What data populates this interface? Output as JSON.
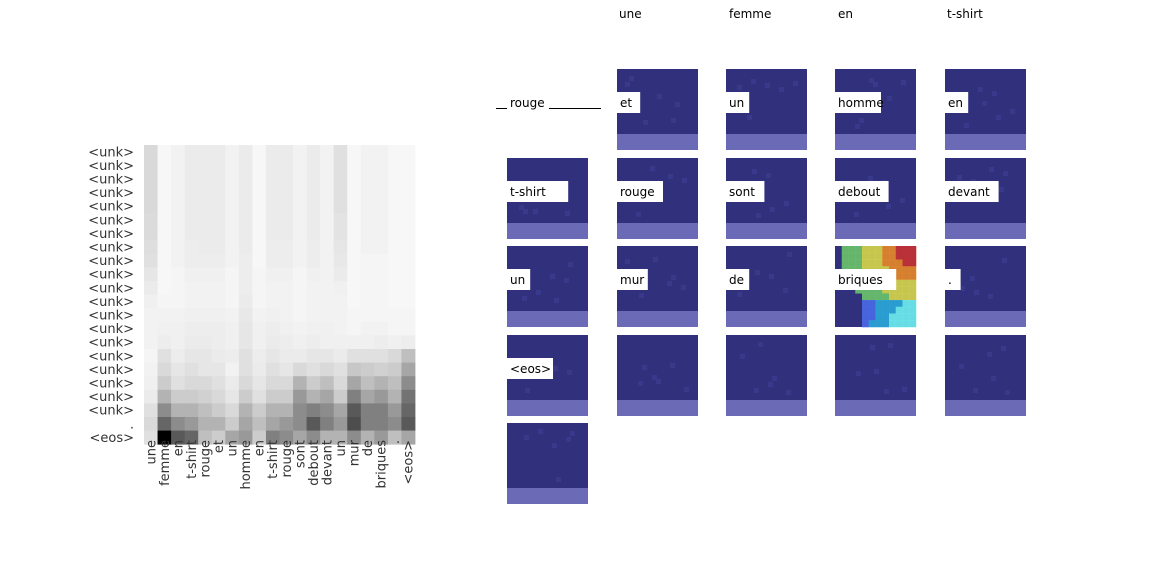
{
  "chart_data": [
    {
      "type": "heatmap",
      "x_tokens": [
        "une",
        "femme",
        "en",
        "t-shirt",
        "rouge",
        "et",
        "un",
        "homme",
        "en",
        "t-shirt",
        "rouge",
        "sont",
        "debout",
        "devant",
        "un",
        "mur",
        "de",
        "briques",
        ".",
        "<eos>"
      ],
      "y_tokens": [
        "<unk>",
        "<unk>",
        "<unk>",
        "<unk>",
        "<unk>",
        "<unk>",
        "<unk>",
        "<unk>",
        "<unk>",
        "<unk>",
        "<unk>",
        "<unk>",
        "<unk>",
        "<unk>",
        "<unk>",
        "<unk>",
        "<unk>",
        "<unk>",
        "<unk>",
        "<unk>",
        ".",
        "<eos>"
      ],
      "colormap": "Greys",
      "values": [
        [
          0.15,
          0.03,
          0.05,
          0.08,
          0.08,
          0.08,
          0.05,
          0.08,
          0.03,
          0.08,
          0.08,
          0.05,
          0.08,
          0.05,
          0.12,
          0.03,
          0.05,
          0.05,
          0.03,
          0.03
        ],
        [
          0.15,
          0.03,
          0.05,
          0.08,
          0.08,
          0.08,
          0.05,
          0.08,
          0.03,
          0.08,
          0.08,
          0.05,
          0.08,
          0.05,
          0.12,
          0.03,
          0.05,
          0.05,
          0.03,
          0.03
        ],
        [
          0.15,
          0.03,
          0.05,
          0.08,
          0.08,
          0.08,
          0.05,
          0.08,
          0.03,
          0.08,
          0.08,
          0.05,
          0.08,
          0.05,
          0.12,
          0.03,
          0.05,
          0.05,
          0.03,
          0.03
        ],
        [
          0.15,
          0.03,
          0.05,
          0.08,
          0.08,
          0.08,
          0.05,
          0.08,
          0.03,
          0.08,
          0.08,
          0.05,
          0.08,
          0.05,
          0.12,
          0.03,
          0.05,
          0.05,
          0.03,
          0.03
        ],
        [
          0.15,
          0.03,
          0.05,
          0.08,
          0.08,
          0.08,
          0.05,
          0.08,
          0.03,
          0.08,
          0.08,
          0.05,
          0.08,
          0.05,
          0.12,
          0.03,
          0.05,
          0.05,
          0.03,
          0.03
        ],
        [
          0.14,
          0.03,
          0.05,
          0.08,
          0.08,
          0.08,
          0.05,
          0.08,
          0.03,
          0.08,
          0.08,
          0.05,
          0.08,
          0.05,
          0.11,
          0.03,
          0.05,
          0.05,
          0.03,
          0.03
        ],
        [
          0.14,
          0.03,
          0.05,
          0.08,
          0.08,
          0.08,
          0.05,
          0.08,
          0.03,
          0.08,
          0.08,
          0.05,
          0.08,
          0.05,
          0.11,
          0.03,
          0.05,
          0.05,
          0.03,
          0.03
        ],
        [
          0.13,
          0.03,
          0.05,
          0.07,
          0.08,
          0.08,
          0.05,
          0.08,
          0.03,
          0.07,
          0.07,
          0.05,
          0.07,
          0.05,
          0.1,
          0.03,
          0.05,
          0.05,
          0.03,
          0.03
        ],
        [
          0.12,
          0.03,
          0.05,
          0.07,
          0.07,
          0.07,
          0.05,
          0.07,
          0.03,
          0.07,
          0.07,
          0.05,
          0.07,
          0.05,
          0.09,
          0.03,
          0.04,
          0.04,
          0.03,
          0.03
        ],
        [
          0.1,
          0.03,
          0.04,
          0.06,
          0.06,
          0.06,
          0.04,
          0.07,
          0.04,
          0.06,
          0.06,
          0.04,
          0.06,
          0.05,
          0.08,
          0.03,
          0.04,
          0.04,
          0.03,
          0.03
        ],
        [
          0.08,
          0.03,
          0.04,
          0.05,
          0.05,
          0.05,
          0.04,
          0.07,
          0.04,
          0.05,
          0.05,
          0.04,
          0.05,
          0.05,
          0.06,
          0.03,
          0.04,
          0.04,
          0.03,
          0.03
        ],
        [
          0.06,
          0.04,
          0.04,
          0.05,
          0.05,
          0.05,
          0.04,
          0.08,
          0.04,
          0.05,
          0.05,
          0.04,
          0.05,
          0.05,
          0.05,
          0.03,
          0.04,
          0.04,
          0.03,
          0.03
        ],
        [
          0.05,
          0.05,
          0.05,
          0.06,
          0.06,
          0.06,
          0.05,
          0.09,
          0.05,
          0.06,
          0.05,
          0.04,
          0.05,
          0.05,
          0.05,
          0.04,
          0.04,
          0.04,
          0.04,
          0.04
        ],
        [
          0.05,
          0.06,
          0.06,
          0.07,
          0.07,
          0.07,
          0.06,
          0.1,
          0.06,
          0.07,
          0.06,
          0.05,
          0.06,
          0.06,
          0.05,
          0.04,
          0.05,
          0.05,
          0.04,
          0.04
        ],
        [
          0.05,
          0.07,
          0.06,
          0.08,
          0.08,
          0.07,
          0.06,
          0.1,
          0.06,
          0.08,
          0.07,
          0.06,
          0.07,
          0.06,
          0.06,
          0.06,
          0.06,
          0.07,
          0.06,
          0.07
        ],
        [
          0.04,
          0.12,
          0.07,
          0.1,
          0.1,
          0.08,
          0.07,
          0.12,
          0.07,
          0.1,
          0.08,
          0.08,
          0.1,
          0.1,
          0.08,
          0.12,
          0.12,
          0.12,
          0.15,
          0.25
        ],
        [
          0.05,
          0.15,
          0.1,
          0.12,
          0.1,
          0.1,
          0.05,
          0.12,
          0.08,
          0.12,
          0.1,
          0.15,
          0.12,
          0.15,
          0.12,
          0.22,
          0.2,
          0.18,
          0.2,
          0.35
        ],
        [
          0.06,
          0.2,
          0.12,
          0.15,
          0.15,
          0.12,
          0.08,
          0.15,
          0.1,
          0.15,
          0.15,
          0.3,
          0.2,
          0.25,
          0.15,
          0.35,
          0.25,
          0.3,
          0.25,
          0.45
        ],
        [
          0.08,
          0.3,
          0.2,
          0.2,
          0.18,
          0.15,
          0.1,
          0.2,
          0.12,
          0.2,
          0.2,
          0.4,
          0.3,
          0.35,
          0.2,
          0.5,
          0.35,
          0.4,
          0.3,
          0.55
        ],
        [
          0.12,
          0.45,
          0.3,
          0.3,
          0.25,
          0.2,
          0.15,
          0.3,
          0.2,
          0.3,
          0.3,
          0.45,
          0.5,
          0.45,
          0.35,
          0.65,
          0.5,
          0.5,
          0.4,
          0.6
        ],
        [
          0.15,
          0.6,
          0.45,
          0.4,
          0.3,
          0.3,
          0.2,
          0.35,
          0.25,
          0.35,
          0.4,
          0.45,
          0.65,
          0.5,
          0.4,
          0.7,
          0.5,
          0.5,
          0.45,
          0.65
        ],
        [
          0.12,
          1.0,
          0.65,
          0.6,
          0.25,
          0.2,
          0.35,
          0.4,
          0.2,
          0.5,
          0.45,
          0.35,
          0.45,
          0.3,
          0.3,
          0.45,
          0.3,
          0.4,
          0.25,
          0.35
        ]
      ]
    },
    {
      "type": "attention_grid",
      "column_headers": [
        "une",
        "femme",
        "en",
        "t-shirt"
      ],
      "first_tile_label": "rouge",
      "tile_labels": [
        "et",
        "un",
        "homme",
        "en",
        "t-shirt",
        "rouge",
        "sont",
        "debout",
        "devant",
        "un",
        "mur",
        "de",
        "briques",
        ".",
        "<eos>",
        "",
        "",
        "",
        "",
        ""
      ],
      "highlighted_tile": "briques"
    }
  ]
}
